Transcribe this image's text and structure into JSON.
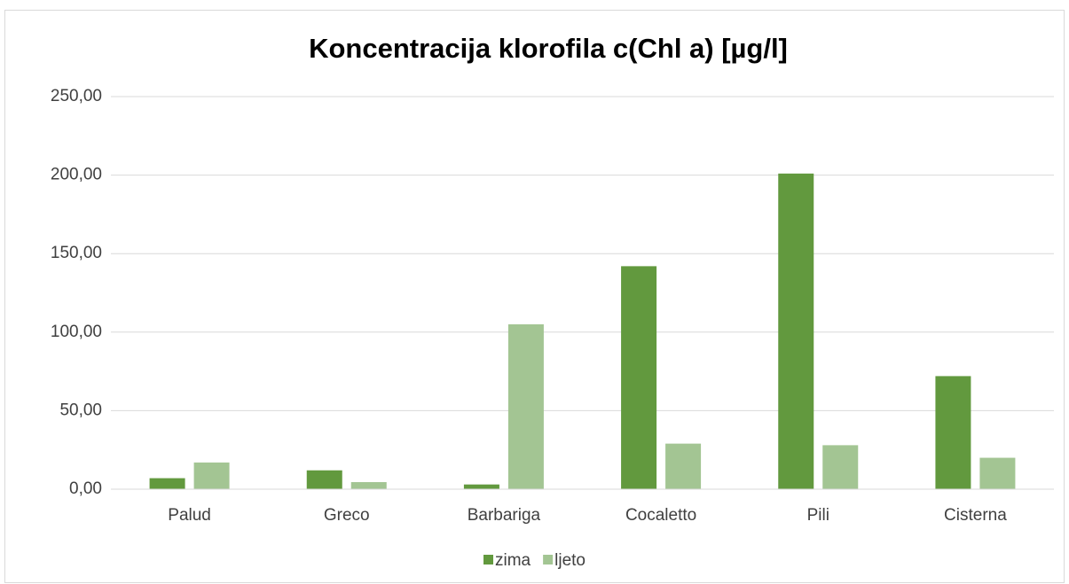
{
  "chart_data": {
    "type": "bar",
    "title": "Koncentracija klorofila c(Chl a) [µg/l]",
    "categories": [
      "Palud",
      "Greco",
      "Barbariga",
      "Cocaletto",
      "Pili",
      "Cisterna"
    ],
    "series": [
      {
        "name": "zima",
        "color": "#62993e",
        "values": [
          7,
          12,
          3,
          142,
          201,
          72
        ]
      },
      {
        "name": "ljeto",
        "color": "#a3c593",
        "values": [
          17,
          4.5,
          105,
          29,
          28,
          20
        ]
      }
    ],
    "ylim": [
      0,
      250
    ],
    "yticks": [
      {
        "value": 0,
        "label": "0,00"
      },
      {
        "value": 50,
        "label": "50,00"
      },
      {
        "value": 100,
        "label": "100,00"
      },
      {
        "value": 150,
        "label": "150,00"
      },
      {
        "value": 200,
        "label": "200,00"
      },
      {
        "value": 250,
        "label": "250,00"
      }
    ],
    "grid": true,
    "legend": "bottom"
  }
}
